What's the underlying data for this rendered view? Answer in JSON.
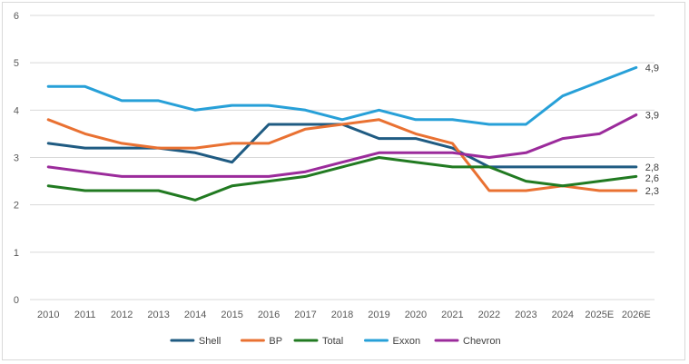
{
  "chart_data": {
    "type": "line",
    "title": "",
    "xlabel": "",
    "ylabel": "",
    "categories": [
      "2010",
      "2011",
      "2012",
      "2013",
      "2014",
      "2015",
      "2016",
      "2017",
      "2018",
      "2019",
      "2020",
      "2021",
      "2022",
      "2023",
      "2024",
      "2025E",
      "2026E"
    ],
    "ylim": [
      0,
      6
    ],
    "yticks": [
      "0",
      "1",
      "2",
      "3",
      "4",
      "5",
      "6"
    ],
    "grid": "horizontal",
    "legend_position": "bottom",
    "series": [
      {
        "name": "Shell",
        "color": "#1f5b82",
        "values": [
          3.3,
          3.2,
          3.2,
          3.2,
          3.1,
          2.9,
          3.7,
          3.7,
          3.7,
          3.4,
          3.4,
          3.2,
          2.8,
          2.8,
          2.8,
          2.8,
          2.8
        ],
        "end_label": "2,8"
      },
      {
        "name": "BP",
        "color": "#e97132",
        "values": [
          3.8,
          3.5,
          3.3,
          3.2,
          3.2,
          3.3,
          3.3,
          3.6,
          3.7,
          3.8,
          3.5,
          3.3,
          2.3,
          2.3,
          2.4,
          2.3,
          2.3
        ],
        "end_label": "2,3"
      },
      {
        "name": "Total",
        "color": "#217a21",
        "values": [
          2.4,
          2.3,
          2.3,
          2.3,
          2.1,
          2.4,
          2.5,
          2.6,
          2.8,
          3.0,
          2.9,
          2.8,
          2.8,
          2.5,
          2.4,
          2.5,
          2.6
        ],
        "end_label": "2,6"
      },
      {
        "name": "Exxon",
        "color": "#27a0d8",
        "values": [
          4.5,
          4.5,
          4.2,
          4.2,
          4.0,
          4.1,
          4.1,
          4.0,
          3.8,
          4.0,
          3.8,
          3.8,
          3.7,
          3.7,
          4.3,
          4.6,
          4.9
        ],
        "end_label": "4,9"
      },
      {
        "name": "Chevron",
        "color": "#9b2b9b",
        "values": [
          2.8,
          2.7,
          2.6,
          2.6,
          2.6,
          2.6,
          2.6,
          2.7,
          2.9,
          3.1,
          3.1,
          3.1,
          3.0,
          3.1,
          3.4,
          3.5,
          3.9
        ],
        "end_label": "3,9"
      }
    ]
  }
}
